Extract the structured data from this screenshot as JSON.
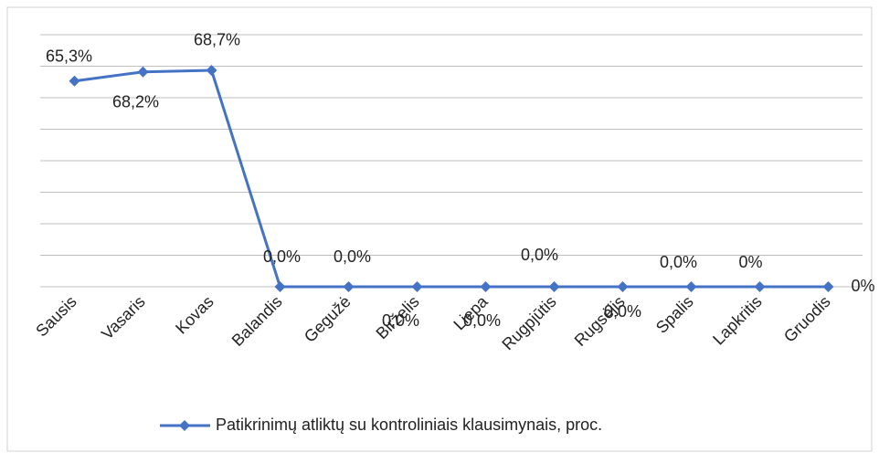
{
  "chart_data": {
    "type": "line",
    "categories": [
      "Sausis",
      "Vasaris",
      "Kovas",
      "Balandis",
      "Gegužė",
      "Birželis",
      "Liepa",
      "Rugpjūtis",
      "Rugsėjis",
      "Spalis",
      "Lapkritis",
      "Gruodis"
    ],
    "series": [
      {
        "name": "Patikrinimų atliktų su kontroliniais klausimynais, proc.",
        "color": "#4472c4",
        "values": [
          65.3,
          68.2,
          68.7,
          0,
          0,
          0,
          0,
          0,
          0,
          0,
          0,
          0
        ],
        "value_labels": [
          "65,3%",
          "68,2%",
          "68,7%",
          "0,0%",
          "0,0%",
          "0,0%",
          "0,0%",
          "0,0%",
          "0,0%",
          "0,0%",
          "0%",
          "0%"
        ]
      }
    ],
    "ylim": [
      0,
      80
    ],
    "yticks": [
      0,
      10,
      20,
      30,
      40,
      50,
      60,
      70,
      80
    ],
    "grid": true,
    "legend": "bottom"
  }
}
